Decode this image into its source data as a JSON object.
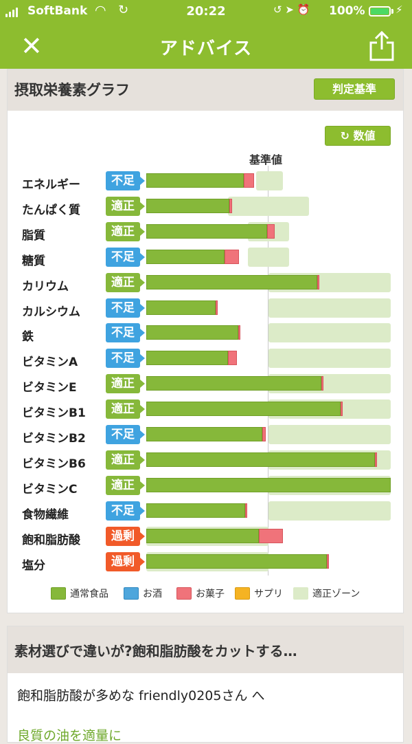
{
  "status_bar": {
    "carrier": "SoftBank",
    "time": "20:22",
    "battery": "100%",
    "icons": [
      "signal-icon",
      "wifi-icon",
      "sync-icon",
      "lock-rotation-icon",
      "location-icon",
      "alarm-icon",
      "battery-icon",
      "charging-icon"
    ]
  },
  "navbar": {
    "close_symbol": "✕",
    "title": "アドバイス",
    "share_icon": "share-icon"
  },
  "colors": {
    "brand_green": "#8dbd2f",
    "normal_food": "#86b83a",
    "alcohol": "#4ea6dc",
    "snack": "#f0737a",
    "supplement": "#f5b323",
    "appropriate_zone": "#dcebc8",
    "status_shortage": "#3fa3e0",
    "status_appropriate": "#86b83a",
    "status_excess": "#f15a29"
  },
  "graph_card": {
    "title": "摂取栄養素グラフ",
    "criteria_button": "判定基準",
    "value_button": "数値",
    "reference_label": "基準値",
    "legend": [
      {
        "label": "通常食品",
        "color": "#86b83a",
        "border": "#6f9f26"
      },
      {
        "label": "お酒",
        "color": "#4ea6dc",
        "border": "#2f87bf"
      },
      {
        "label": "お菓子",
        "color": "#f0737a",
        "border": "#d6545b"
      },
      {
        "label": "サプリ",
        "color": "#f5b323",
        "border": "#d99a10"
      },
      {
        "label": "適正ゾーン",
        "color": "#dcebc8",
        "border": "#dcebc8"
      }
    ]
  },
  "chart_data": {
    "type": "bar",
    "orientation": "horizontal",
    "stacked": true,
    "series": [
      {
        "name": "通常食品",
        "values": [
          80,
          68,
          99,
          64,
          140,
          57,
          75,
          67,
          143,
          159,
          95,
          187,
          200,
          81,
          92,
          148
        ]
      },
      {
        "name": "お菓子",
        "values": [
          8,
          2,
          6,
          12,
          1,
          1,
          1,
          7,
          2,
          1,
          3,
          2,
          0,
          1,
          20,
          1
        ]
      }
    ],
    "categories": [
      "エネルギー",
      "たんぱく質",
      "脂質",
      "糖質",
      "カリウム",
      "カルシウム",
      "鉄",
      "ビタミンA",
      "ビタミンE",
      "ビタミンB1",
      "ビタミンB2",
      "ビタミンB6",
      "ビタミンC",
      "食物繊維",
      "飽和脂肪酸",
      "塩分"
    ],
    "status": [
      "不足",
      "適正",
      "適正",
      "不足",
      "適正",
      "不足",
      "不足",
      "不足",
      "適正",
      "適正",
      "不足",
      "適正",
      "適正",
      "不足",
      "過剰",
      "過剰"
    ],
    "appropriate_zone": [
      [
        90,
        112
      ],
      [
        67,
        133
      ],
      [
        83,
        117
      ],
      [
        83,
        117
      ],
      [
        100,
        200
      ],
      [
        100,
        200
      ],
      [
        100,
        200
      ],
      [
        100,
        200
      ],
      [
        100,
        200
      ],
      [
        100,
        200
      ],
      [
        100,
        200
      ],
      [
        100,
        200
      ],
      [
        100,
        200
      ],
      [
        100,
        200
      ],
      [
        0,
        100
      ],
      [
        0,
        100
      ]
    ],
    "reference_value": 100,
    "xlim": [
      0,
      200
    ],
    "unit": "% of reference"
  },
  "article_card": {
    "title": "素材選びで違いが?飽和脂肪酸をカットする…",
    "message": "飽和脂肪酸が多めな friendly0205さん へ",
    "highlight": "良質の油を適量に"
  }
}
